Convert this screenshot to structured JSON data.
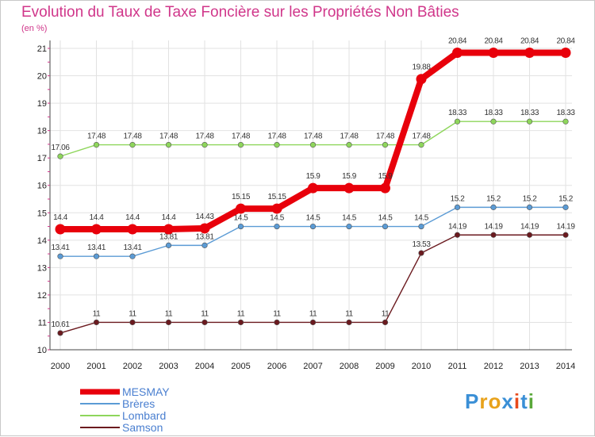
{
  "chart_data": {
    "type": "line",
    "title": "Evolution du Taux de Taxe Foncière sur les Propriétés Non Bâties",
    "subtitle": "(en %)",
    "x": [
      "2000",
      "2001",
      "2002",
      "2003",
      "2004",
      "2005",
      "2006",
      "2007",
      "2008",
      "2009",
      "2010",
      "2011",
      "2012",
      "2013",
      "2014"
    ],
    "ylim": [
      10,
      21
    ],
    "yticks": [
      10,
      11,
      12,
      13,
      14,
      15,
      16,
      17,
      18,
      19,
      20,
      21
    ],
    "grid": true,
    "legend_position": "bottom-left",
    "series": [
      {
        "name": "MESMAY",
        "color": "#e8000b",
        "values": [
          14.4,
          14.4,
          14.4,
          14.4,
          14.43,
          15.15,
          15.15,
          15.9,
          15.9,
          15.9,
          19.88,
          20.84,
          20.84,
          20.84,
          20.84
        ],
        "labels": [
          "14.4",
          "14.4",
          "14.4",
          "14.4",
          "14.43",
          "15.15",
          "15.15",
          "15.9",
          "15.9",
          "15.9",
          "19.88",
          "20.84",
          "20.84",
          "20.84",
          "20.84"
        ]
      },
      {
        "name": "Brères",
        "color": "#5b9bd5",
        "values": [
          13.41,
          13.41,
          13.41,
          13.81,
          13.81,
          14.5,
          14.5,
          14.5,
          14.5,
          14.5,
          14.5,
          15.2,
          15.2,
          15.2,
          15.2
        ],
        "labels": [
          "13.41",
          "13.41",
          "13.41",
          "13.81",
          "13.81",
          "14.5",
          "14.5",
          "14.5",
          "14.5",
          "14.5",
          "14.5",
          "15.2",
          "15.2",
          "15.2",
          "15.2"
        ]
      },
      {
        "name": "Lombard",
        "color": "#8ed65b",
        "values": [
          17.06,
          17.48,
          17.48,
          17.48,
          17.48,
          17.48,
          17.48,
          17.48,
          17.48,
          17.48,
          17.48,
          18.33,
          18.33,
          18.33,
          18.33
        ],
        "labels": [
          "17.06",
          "17.48",
          "17.48",
          "17.48",
          "17.48",
          "17.48",
          "17.48",
          "17.48",
          "17.48",
          "17.48",
          "17.48",
          "18.33",
          "18.33",
          "18.33",
          "18.33"
        ]
      },
      {
        "name": "Samson",
        "color": "#6b1a1f",
        "values": [
          10.61,
          11,
          11,
          11,
          11,
          11,
          11,
          11,
          11,
          11,
          13.53,
          14.19,
          14.19,
          14.19,
          14.19
        ],
        "labels": [
          "10.61",
          "11",
          "11",
          "11",
          "11",
          "11",
          "11",
          "11",
          "11",
          "11",
          "13.53",
          "14.19",
          "14.19",
          "14.19",
          "14.19"
        ]
      }
    ]
  },
  "logo": {
    "text": "Proxiti"
  }
}
